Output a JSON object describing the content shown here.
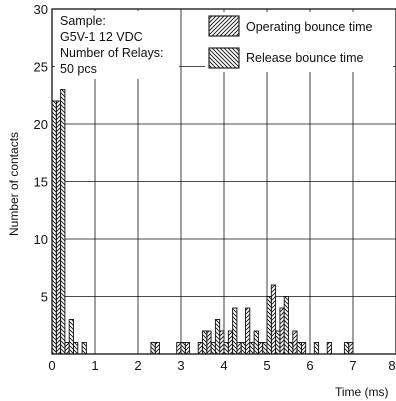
{
  "chart_data": {
    "type": "bar",
    "xlabel": "Time (ms)",
    "ylabel": "Number of contacts",
    "xlim": [
      0,
      8
    ],
    "ylim": [
      0,
      30
    ],
    "x_ticks": [
      "0",
      "1",
      "2",
      "3",
      "4",
      "5",
      "6",
      "7",
      "8"
    ],
    "y_ticks": [
      "5",
      "10",
      "15",
      "20",
      "25",
      "30"
    ],
    "bin_width_ms": 0.1,
    "grid": true,
    "annotation": [
      "Sample:",
      "G5V-1 12 VDC",
      "Number of Relays:",
      "50 pcs"
    ],
    "legend_position": "top-right",
    "series": [
      {
        "name": "Operating bounce time",
        "pattern": "forward-diagonal",
        "bins": [
          {
            "x": 0.1,
            "y": 22
          },
          {
            "x": 0.3,
            "y": 1
          },
          {
            "x": 2.4,
            "y": 1
          },
          {
            "x": 2.9,
            "y": 1
          },
          {
            "x": 3.1,
            "y": 1
          },
          {
            "x": 3.4,
            "y": 1
          },
          {
            "x": 3.6,
            "y": 2
          },
          {
            "x": 3.9,
            "y": 2
          },
          {
            "x": 4.1,
            "y": 2
          },
          {
            "x": 4.3,
            "y": 1
          },
          {
            "x": 4.5,
            "y": 4
          },
          {
            "x": 4.8,
            "y": 1
          },
          {
            "x": 5.1,
            "y": 6
          },
          {
            "x": 5.3,
            "y": 4
          },
          {
            "x": 5.6,
            "y": 2
          },
          {
            "x": 5.8,
            "y": 1
          },
          {
            "x": 6.4,
            "y": 1
          },
          {
            "x": 6.9,
            "y": 1
          }
        ]
      },
      {
        "name": "Release bounce time",
        "pattern": "back-diagonal",
        "bins": [
          {
            "x": 0.0,
            "y": 22
          },
          {
            "x": 0.2,
            "y": 23
          },
          {
            "x": 0.4,
            "y": 3
          },
          {
            "x": 0.5,
            "y": 1
          },
          {
            "x": 0.7,
            "y": 1
          },
          {
            "x": 2.3,
            "y": 1
          },
          {
            "x": 3.0,
            "y": 1
          },
          {
            "x": 3.5,
            "y": 2
          },
          {
            "x": 3.7,
            "y": 1
          },
          {
            "x": 3.8,
            "y": 3
          },
          {
            "x": 4.0,
            "y": 1
          },
          {
            "x": 4.2,
            "y": 4
          },
          {
            "x": 4.4,
            "y": 1
          },
          {
            "x": 4.6,
            "y": 1
          },
          {
            "x": 4.7,
            "y": 2
          },
          {
            "x": 4.9,
            "y": 1
          },
          {
            "x": 5.0,
            "y": 5
          },
          {
            "x": 5.2,
            "y": 2
          },
          {
            "x": 5.4,
            "y": 5
          },
          {
            "x": 5.5,
            "y": 1
          },
          {
            "x": 5.7,
            "y": 1
          },
          {
            "x": 6.1,
            "y": 1
          },
          {
            "x": 6.8,
            "y": 1
          }
        ]
      }
    ]
  }
}
